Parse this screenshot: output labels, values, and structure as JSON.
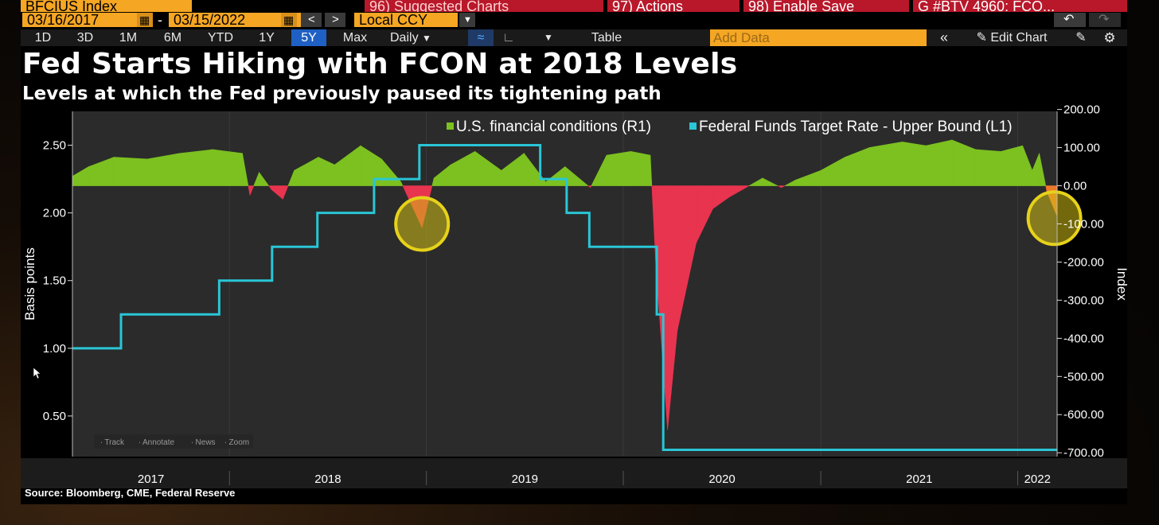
{
  "top_bar": {
    "security": "BFCIUS Index",
    "suggested": "96) Suggested Charts",
    "actions": "97) Actions",
    "enable_save": "98) Enable Save",
    "chart_name": "G #BTV 4960: FCO..."
  },
  "date_range": {
    "start": "03/16/2017",
    "separator": "-",
    "end": "03/15/2022",
    "currency": "Local CCY"
  },
  "toolbar": {
    "periods": [
      "1D",
      "3D",
      "1M",
      "6M",
      "YTD",
      "1Y",
      "5Y",
      "Max"
    ],
    "active_period": "5Y",
    "frequency": "Daily",
    "table_label": "Table",
    "add_data_placeholder": "Add Data",
    "edit_chart_label": "Edit Chart"
  },
  "colors": {
    "cyan_line": "#29c6d6",
    "green_area": "#7cc120",
    "red_area": "#e8344f",
    "orange_area": "#f0782a",
    "highlight": "#e6d21a",
    "active_period_bg": "#1f60c4",
    "toolbar_orange": "#f5a623"
  },
  "mini_toolbar": [
    "Track",
    "Annotate",
    "News",
    "Zoom"
  ],
  "source": "Source: Bloomberg, CME, Federal Reserve",
  "chart_data": {
    "type": "line",
    "title": "Fed Starts Hiking with FCON at 2018 Levels",
    "subtitle": "Levels at which the Fed previously paused its tightening path",
    "ylabel_left": "Basis points",
    "ylabel_right": "Index",
    "x_range": [
      "2017-03-16",
      "2022-03-15"
    ],
    "x_ticks": [
      "2017",
      "2018",
      "2019",
      "2020",
      "2021",
      "2022"
    ],
    "y_left_ticks": [
      "0.50",
      "1.00",
      "1.50",
      "2.00",
      "2.50"
    ],
    "y_left_range": [
      0.2,
      2.75
    ],
    "y_right_ticks": [
      "200.00",
      "100.00",
      "0.00",
      "-100.00",
      "-200.00",
      "-300.00",
      "-400.00",
      "-500.00",
      "-600.00",
      "-700.00"
    ],
    "y_right_range": [
      -710,
      195
    ],
    "legend_position": "top-right",
    "series": [
      {
        "name": "U.S. financial conditions (R1)",
        "axis": "right",
        "style": "area",
        "points": [
          [
            "2017-03-16",
            25
          ],
          [
            "2017-04-15",
            50
          ],
          [
            "2017-06-01",
            75
          ],
          [
            "2017-08-01",
            70
          ],
          [
            "2017-10-01",
            85
          ],
          [
            "2017-12-01",
            95
          ],
          [
            "2018-01-25",
            85
          ],
          [
            "2018-02-08",
            -25
          ],
          [
            "2018-02-25",
            35
          ],
          [
            "2018-03-20",
            -10
          ],
          [
            "2018-04-10",
            -35
          ],
          [
            "2018-05-01",
            40
          ],
          [
            "2018-06-15",
            75
          ],
          [
            "2018-07-15",
            55
          ],
          [
            "2018-09-01",
            105
          ],
          [
            "2018-10-10",
            70
          ],
          [
            "2018-11-15",
            10
          ],
          [
            "2018-12-24",
            -110
          ],
          [
            "2019-01-15",
            20
          ],
          [
            "2019-02-15",
            55
          ],
          [
            "2019-04-01",
            90
          ],
          [
            "2019-05-20",
            40
          ],
          [
            "2019-07-01",
            85
          ],
          [
            "2019-08-10",
            10
          ],
          [
            "2019-09-15",
            50
          ],
          [
            "2019-11-01",
            -5
          ],
          [
            "2019-12-01",
            80
          ],
          [
            "2020-01-15",
            90
          ],
          [
            "2020-02-20",
            80
          ],
          [
            "2020-03-01",
            -200
          ],
          [
            "2020-03-23",
            -640
          ],
          [
            "2020-04-10",
            -380
          ],
          [
            "2020-05-15",
            -150
          ],
          [
            "2020-06-15",
            -60
          ],
          [
            "2020-07-15",
            -30
          ],
          [
            "2020-08-15",
            -5
          ],
          [
            "2020-09-15",
            20
          ],
          [
            "2020-10-20",
            -5
          ],
          [
            "2020-11-15",
            15
          ],
          [
            "2021-01-01",
            40
          ],
          [
            "2021-02-15",
            75
          ],
          [
            "2021-04-01",
            100
          ],
          [
            "2021-06-01",
            115
          ],
          [
            "2021-07-15",
            105
          ],
          [
            "2021-09-01",
            120
          ],
          [
            "2021-10-15",
            95
          ],
          [
            "2021-12-01",
            90
          ],
          [
            "2022-01-10",
            105
          ],
          [
            "2022-01-28",
            40
          ],
          [
            "2022-02-10",
            85
          ],
          [
            "2022-02-24",
            -15
          ],
          [
            "2022-03-15",
            -80
          ]
        ]
      },
      {
        "name": "Federal Funds Target Rate - Upper Bound  (L1)",
        "axis": "left",
        "style": "step",
        "points": [
          [
            "2017-03-16",
            1.0
          ],
          [
            "2017-06-14",
            1.25
          ],
          [
            "2017-12-13",
            1.5
          ],
          [
            "2018-03-21",
            1.75
          ],
          [
            "2018-06-13",
            2.0
          ],
          [
            "2018-09-26",
            2.25
          ],
          [
            "2018-12-19",
            2.5
          ],
          [
            "2019-07-31",
            2.25
          ],
          [
            "2019-09-18",
            2.0
          ],
          [
            "2019-10-30",
            1.75
          ],
          [
            "2020-03-03",
            1.25
          ],
          [
            "2020-03-15",
            0.25
          ],
          [
            "2022-03-15",
            0.25
          ]
        ]
      }
    ],
    "annotations": [
      {
        "type": "circle",
        "date": "2018-12-24",
        "value_right": -100,
        "note": "highlight"
      },
      {
        "type": "circle",
        "date": "2022-03-10",
        "value_right": -85,
        "note": "highlight"
      }
    ]
  }
}
